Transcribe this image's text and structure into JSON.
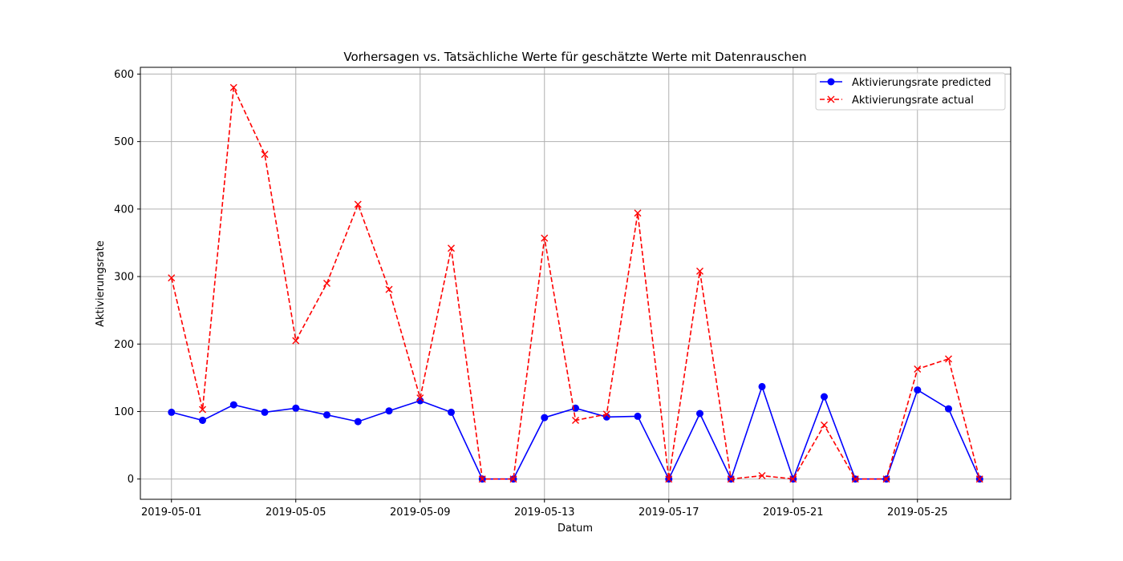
{
  "chart_data": {
    "type": "line",
    "title": "Vorhersagen vs. Tatsächliche Werte für geschätzte Werte mit Datenrauschen",
    "xlabel": "Datum",
    "ylabel": "Aktivierungsrate",
    "x": [
      "2019-05-01",
      "2019-05-02",
      "2019-05-03",
      "2019-05-04",
      "2019-05-05",
      "2019-05-06",
      "2019-05-07",
      "2019-05-08",
      "2019-05-09",
      "2019-05-10",
      "2019-05-11",
      "2019-05-12",
      "2019-05-13",
      "2019-05-14",
      "2019-05-15",
      "2019-05-16",
      "2019-05-17",
      "2019-05-18",
      "2019-05-19",
      "2019-05-20",
      "2019-05-21",
      "2019-05-22",
      "2019-05-23",
      "2019-05-24",
      "2019-05-25",
      "2019-05-26",
      "2019-05-27"
    ],
    "x_ticks": [
      "2019-05-01",
      "2019-05-05",
      "2019-05-09",
      "2019-05-13",
      "2019-05-17",
      "2019-05-21",
      "2019-05-25"
    ],
    "y_ticks": [
      0,
      100,
      200,
      300,
      400,
      500,
      600
    ],
    "ylim": [
      -30,
      610
    ],
    "xlim": [
      "2019-04-30",
      "2019-05-28"
    ],
    "grid": true,
    "legend_position": "top-right",
    "series": [
      {
        "name": "Aktivierungsrate predicted",
        "color": "#0000ff",
        "line_style": "solid",
        "marker": "circle",
        "values": [
          99,
          87,
          110,
          99,
          105,
          95,
          85,
          101,
          116,
          99,
          0,
          0,
          91,
          105,
          92,
          93,
          0,
          97,
          0,
          137,
          0,
          122,
          0,
          0,
          132,
          104,
          0
        ]
      },
      {
        "name": "Aktivierungsrate actual",
        "color": "#ff0000",
        "line_style": "dashed",
        "marker": "x",
        "values": [
          298,
          103,
          580,
          481,
          205,
          290,
          407,
          281,
          120,
          342,
          0,
          0,
          357,
          87,
          96,
          394,
          0,
          308,
          0,
          5,
          0,
          80,
          0,
          0,
          163,
          178,
          0
        ]
      }
    ]
  }
}
